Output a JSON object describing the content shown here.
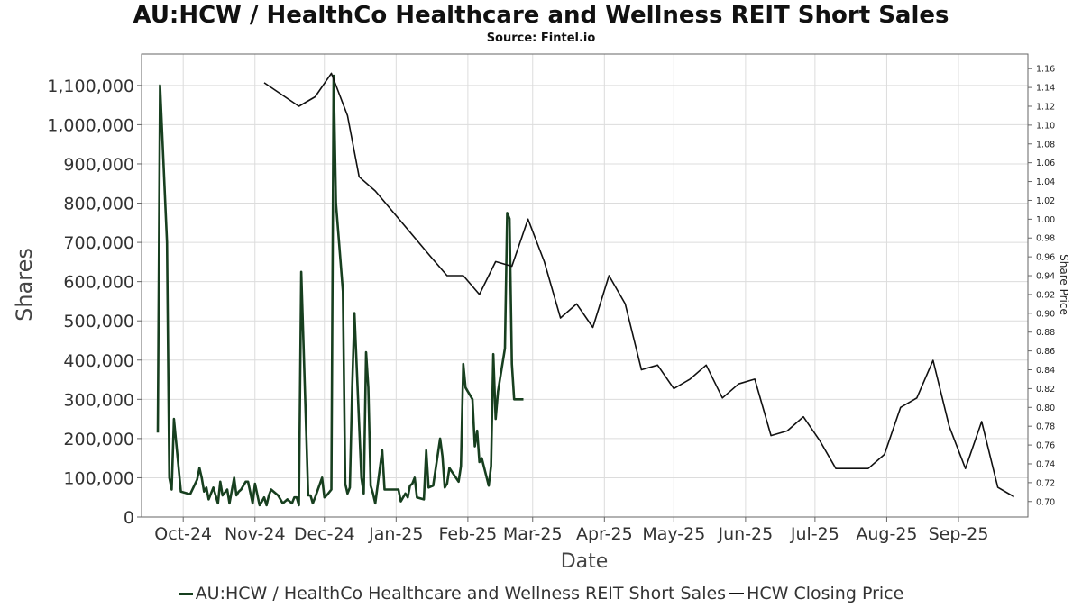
{
  "chart_data": {
    "type": "line",
    "title": "AU:HCW / HealthCo Healthcare and Wellness REIT Short Sales",
    "subtitle": "Source: Fintel.io",
    "xlabel": "Date",
    "ylabel": "Shares",
    "y2label": "Share Price",
    "grid": true,
    "legend_position": "bottom-center",
    "x_ticks": [
      "Oct-24",
      "Nov-24",
      "Dec-24",
      "Jan-25",
      "Feb-25",
      "Mar-25",
      "Apr-25",
      "May-25",
      "Jun-25",
      "Jul-25",
      "Aug-25",
      "Sep-25"
    ],
    "y_ticks": [
      "0",
      "100,000",
      "200,000",
      "300,000",
      "400,000",
      "500,000",
      "600,000",
      "700,000",
      "800,000",
      "900,000",
      "1,000,000",
      "1,100,000"
    ],
    "y2_ticks": [
      "0.70",
      "0.72",
      "0.74",
      "0.76",
      "0.78",
      "0.80",
      "0.82",
      "0.84",
      "0.86",
      "0.88",
      "0.90",
      "0.92",
      "0.94",
      "0.96",
      "0.98",
      "1.00",
      "1.02",
      "1.04",
      "1.06",
      "1.08",
      "1.10",
      "1.12",
      "1.14",
      "1.16"
    ],
    "x_range": [
      "2024-09-13",
      "2025-10-01"
    ],
    "ylim": [
      0,
      1180000
    ],
    "y2lim": [
      0.6835,
      1.1755
    ],
    "series": [
      {
        "name": "AU:HCW / HealthCo Healthcare and Wellness REIT Short Sales",
        "axis": "left",
        "color": "#173f1f",
        "x": [
          "2024-09-20",
          "2024-09-21",
          "2024-09-24",
          "2024-09-25",
          "2024-09-26",
          "2024-09-27",
          "2024-09-30",
          "2024-10-04",
          "2024-10-07",
          "2024-10-08",
          "2024-10-09",
          "2024-10-10",
          "2024-10-11",
          "2024-10-12",
          "2024-10-14",
          "2024-10-16",
          "2024-10-17",
          "2024-10-18",
          "2024-10-20",
          "2024-10-21",
          "2024-10-23",
          "2024-10-24",
          "2024-10-25",
          "2024-10-26",
          "2024-10-28",
          "2024-10-29",
          "2024-10-31",
          "2024-11-01",
          "2024-11-03",
          "2024-11-04",
          "2024-11-05",
          "2024-11-06",
          "2024-11-07",
          "2024-11-08",
          "2024-11-10",
          "2024-11-11",
          "2024-11-13",
          "2024-11-15",
          "2024-11-17",
          "2024-11-18",
          "2024-11-19",
          "2024-11-20",
          "2024-11-21",
          "2024-11-24",
          "2024-11-25",
          "2024-11-26",
          "2024-11-27",
          "2024-11-30",
          "2024-12-01",
          "2024-12-02",
          "2024-12-04",
          "2024-12-05",
          "2024-12-06",
          "2024-12-09",
          "2024-12-10",
          "2024-12-11",
          "2024-12-12",
          "2024-12-13",
          "2024-12-14",
          "2024-12-17",
          "2024-12-18",
          "2024-12-19",
          "2024-12-20",
          "2024-12-21",
          "2024-12-22",
          "2024-12-23",
          "2024-12-26",
          "2024-12-27",
          "2025-01-02",
          "2025-01-03",
          "2025-01-05",
          "2025-01-06",
          "2025-01-07",
          "2025-01-08",
          "2025-01-09",
          "2025-01-10",
          "2025-01-13",
          "2025-01-14",
          "2025-01-15",
          "2025-01-17",
          "2025-01-20",
          "2025-01-21",
          "2025-01-22",
          "2025-01-23",
          "2025-01-24",
          "2025-01-28",
          "2025-01-29",
          "2025-01-30",
          "2025-01-31",
          "2025-02-03",
          "2025-02-04",
          "2025-02-05",
          "2025-02-06",
          "2025-02-07",
          "2025-02-10",
          "2025-02-11",
          "2025-02-12",
          "2025-02-13",
          "2025-02-14",
          "2025-02-17",
          "2025-02-18",
          "2025-02-19",
          "2025-02-20",
          "2025-02-21",
          "2025-02-22",
          "2025-02-24",
          "2025-02-25"
        ],
        "values": [
          215000,
          1100000,
          700000,
          100000,
          70000,
          250000,
          65000,
          58000,
          95000,
          125000,
          100000,
          65000,
          75000,
          45000,
          75000,
          35000,
          90000,
          55000,
          70000,
          35000,
          100000,
          55000,
          65000,
          70000,
          90000,
          90000,
          35000,
          85000,
          30000,
          40000,
          50000,
          30000,
          55000,
          70000,
          60000,
          55000,
          35000,
          45000,
          35000,
          50000,
          50000,
          30000,
          625000,
          55000,
          55000,
          35000,
          50000,
          100000,
          50000,
          55000,
          70000,
          1125000,
          800000,
          575000,
          85000,
          60000,
          75000,
          330000,
          520000,
          100000,
          60000,
          420000,
          330000,
          80000,
          60000,
          35000,
          170000,
          70000,
          70000,
          40000,
          60000,
          50000,
          80000,
          85000,
          100000,
          50000,
          45000,
          170000,
          75000,
          80000,
          200000,
          155000,
          75000,
          85000,
          125000,
          90000,
          130000,
          390000,
          330000,
          300000,
          180000,
          220000,
          140000,
          150000,
          80000,
          130000,
          415000,
          250000,
          320000,
          430000,
          775000,
          760000,
          390000,
          300000,
          300000,
          300000,
          300000
        ],
        "values_note_excluded": []
      },
      {
        "name": "HCW Closing Price",
        "axis": "right",
        "color": "#111111",
        "x": [
          "2024-11-05",
          "2024-11-20",
          "2024-11-27",
          "2024-12-04",
          "2024-12-11",
          "2024-12-16",
          "2024-12-23",
          "2025-01-16",
          "2025-01-23",
          "2025-01-30",
          "2025-02-06",
          "2025-02-13",
          "2025-02-20",
          "2025-02-27",
          "2025-03-06",
          "2025-03-13",
          "2025-03-20",
          "2025-03-27",
          "2025-04-03",
          "2025-04-10",
          "2025-04-17",
          "2025-04-24",
          "2025-05-01",
          "2025-05-08",
          "2025-05-15",
          "2025-05-22",
          "2025-05-29",
          "2025-06-05",
          "2025-06-12",
          "2025-06-19",
          "2025-06-26",
          "2025-07-03",
          "2025-07-10",
          "2025-07-17",
          "2025-07-24",
          "2025-07-31",
          "2025-08-07",
          "2025-08-14",
          "2025-08-21",
          "2025-08-28",
          "2025-09-04",
          "2025-09-11",
          "2025-09-18",
          "2025-09-25"
        ],
        "values": [
          1.145,
          1.12,
          1.13,
          1.155,
          1.11,
          1.045,
          1.03,
          0.96,
          0.94,
          0.94,
          0.92,
          0.955,
          0.95,
          1.0,
          0.955,
          0.895,
          0.91,
          0.885,
          0.94,
          0.91,
          0.84,
          0.845,
          0.82,
          0.83,
          0.845,
          0.81,
          0.825,
          0.83,
          0.77,
          0.775,
          0.79,
          0.765,
          0.735,
          0.735,
          0.735,
          0.75,
          0.8,
          0.81,
          0.85,
          0.78,
          0.735,
          0.785,
          0.715,
          0.705
        ]
      }
    ]
  }
}
